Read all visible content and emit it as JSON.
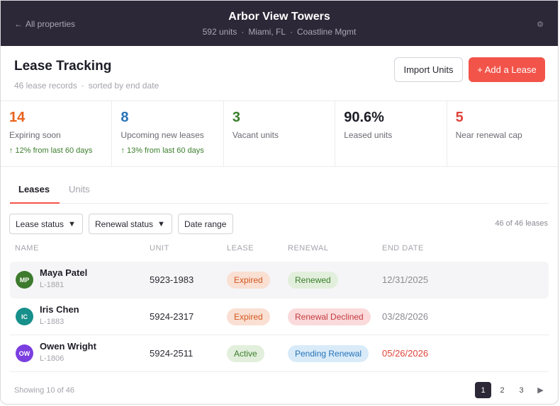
{
  "topbar": {
    "back_label": "All properties",
    "back_arrow": "←",
    "property_name": "Arbor View Towers",
    "units": "592 units",
    "location": "Miami, FL",
    "manager": "Coastline Mgmt",
    "separator": "·",
    "gear_glyph": "⚙",
    "gear_icon": "gear-icon"
  },
  "header": {
    "title": "Lease Tracking",
    "records": "46 lease records",
    "sort": "sorted by end date",
    "separator": "·",
    "import_label": "Import Units",
    "add_label": "+ Add a Lease"
  },
  "stats": [
    {
      "value": "14",
      "label": "Expiring soon",
      "trend": "↑ 12% from last 60 days",
      "color": "#e8621c"
    },
    {
      "value": "8",
      "label": "Upcoming new leases",
      "trend": "↑ 13% from last 60 days",
      "color": "#2673b8"
    },
    {
      "value": "3",
      "label": "Vacant units",
      "trend": "",
      "color": "#3a7d2b"
    },
    {
      "value": "90.6%",
      "label": "Leased units",
      "trend": "",
      "color": "#1d1d27"
    },
    {
      "value": "5",
      "label": "Near renewal cap",
      "trend": "",
      "color": "#e0443a"
    }
  ],
  "tabs": [
    {
      "label": "Leases",
      "active": true
    },
    {
      "label": "Units",
      "active": false
    }
  ],
  "filters": {
    "lease_status": "Lease status",
    "renewal_status": "Renewal status",
    "date_range": "Date range",
    "caret": "▼",
    "count": "46 of 46 leases"
  },
  "table": {
    "columns": [
      "NAME",
      "UNIT",
      "LEASE",
      "RENEWAL",
      "END DATE"
    ],
    "rows": [
      {
        "initials": "MP",
        "name": "Maya Patel",
        "id": "L-1881",
        "unit": "5923-1983",
        "lease": "Expired",
        "renewal": "Renewed",
        "end_date": "12/31/2025",
        "avatar_color": "#3d7a2e",
        "lease_bg": "#fadfd3",
        "lease_fg": "#d2581f",
        "renewal_bg": "#e2efdc",
        "renewal_fg": "#3a7d2b",
        "date_alert": false
      },
      {
        "initials": "IC",
        "name": "Iris Chen",
        "id": "L-1883",
        "unit": "5924-2317",
        "lease": "Expired",
        "renewal": "Renewal Declined",
        "end_date": "03/28/2026",
        "avatar_color": "#178f8a",
        "lease_bg": "#fadfd3",
        "lease_fg": "#d2581f",
        "renewal_bg": "#fadadb",
        "renewal_fg": "#c63a3f",
        "date_alert": false
      },
      {
        "initials": "OW",
        "name": "Owen Wright",
        "id": "L-1806",
        "unit": "5924-2511",
        "lease": "Active",
        "renewal": "Pending Renewal",
        "end_date": "05/26/2026",
        "avatar_color": "#7b3fe0",
        "lease_bg": "#e2efdc",
        "lease_fg": "#3a7d2b",
        "renewal_bg": "#d9ebf8",
        "renewal_fg": "#2673b8",
        "date_alert": true
      }
    ]
  },
  "footer": {
    "showing": "Showing 10 of 46",
    "pages": [
      "1",
      "2",
      "3"
    ],
    "current_page": "1",
    "next_glyph": "▶"
  }
}
